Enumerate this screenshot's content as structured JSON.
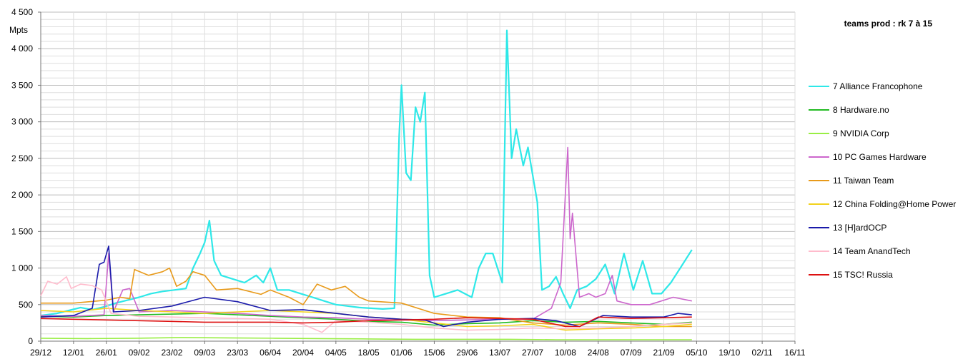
{
  "chart_data": {
    "type": "line",
    "title": "teams prod : rk 7 à 15",
    "ylabel": "Mpts",
    "xlabel": "",
    "ylim": [
      0,
      4500
    ],
    "yticks": [
      0,
      500,
      1000,
      1500,
      2000,
      2500,
      3000,
      3500,
      4000,
      4500
    ],
    "ytick_labels": [
      "0",
      "500",
      "1 000",
      "1 500",
      "2 000",
      "2 500",
      "3 000",
      "3 500",
      "4 000",
      "4 500"
    ],
    "x_tick_labels": [
      "29/12",
      "12/01",
      "26/01",
      "09/02",
      "23/02",
      "09/03",
      "23/03",
      "06/04",
      "20/04",
      "04/05",
      "18/05",
      "01/06",
      "15/06",
      "29/06",
      "13/07",
      "27/07",
      "10/08",
      "24/08",
      "07/09",
      "21/09",
      "05/10",
      "19/10",
      "02/11",
      "16/11"
    ],
    "grid": true,
    "legend_position": "right",
    "series": [
      {
        "name": "7 Alliance Francophone",
        "color": "#2ee8e8",
        "points": [
          [
            0,
            350
          ],
          [
            7,
            380
          ],
          [
            12,
            420
          ],
          [
            17,
            460
          ],
          [
            22,
            430
          ],
          [
            27,
            470
          ],
          [
            32,
            520
          ],
          [
            37,
            560
          ],
          [
            42,
            600
          ],
          [
            47,
            650
          ],
          [
            52,
            680
          ],
          [
            57,
            700
          ],
          [
            62,
            720
          ],
          [
            65,
            1000
          ],
          [
            68,
            1200
          ],
          [
            70,
            1350
          ],
          [
            72,
            1650
          ],
          [
            74,
            1100
          ],
          [
            77,
            900
          ],
          [
            82,
            850
          ],
          [
            87,
            800
          ],
          [
            92,
            900
          ],
          [
            95,
            800
          ],
          [
            98,
            1000
          ],
          [
            101,
            700
          ],
          [
            106,
            700
          ],
          [
            111,
            650
          ],
          [
            116,
            600
          ],
          [
            121,
            550
          ],
          [
            126,
            500
          ],
          [
            131,
            480
          ],
          [
            136,
            460
          ],
          [
            141,
            450
          ],
          [
            146,
            440
          ],
          [
            151,
            450
          ],
          [
            153,
            2800
          ],
          [
            154,
            3500
          ],
          [
            156,
            2300
          ],
          [
            158,
            2200
          ],
          [
            160,
            3200
          ],
          [
            162,
            3000
          ],
          [
            164,
            3400
          ],
          [
            166,
            900
          ],
          [
            168,
            600
          ],
          [
            173,
            650
          ],
          [
            178,
            700
          ],
          [
            181,
            650
          ],
          [
            184,
            600
          ],
          [
            187,
            1000
          ],
          [
            190,
            1200
          ],
          [
            193,
            1200
          ],
          [
            197,
            800
          ],
          [
            199,
            4250
          ],
          [
            201,
            2500
          ],
          [
            203,
            2900
          ],
          [
            206,
            2400
          ],
          [
            208,
            2650
          ],
          [
            212,
            1900
          ],
          [
            214,
            700
          ],
          [
            217,
            750
          ],
          [
            220,
            880
          ],
          [
            223,
            650
          ],
          [
            226,
            450
          ],
          [
            229,
            700
          ],
          [
            233,
            750
          ],
          [
            237,
            850
          ],
          [
            241,
            1050
          ],
          [
            245,
            650
          ],
          [
            249,
            1200
          ],
          [
            253,
            700
          ],
          [
            257,
            1100
          ],
          [
            261,
            650
          ],
          [
            265,
            650
          ],
          [
            269,
            800
          ],
          [
            273,
            1000
          ],
          [
            276,
            1150
          ],
          [
            278,
            1250
          ]
        ]
      },
      {
        "name": "8 Hardware.no",
        "color": "#22bb22",
        "points": [
          [
            0,
            340
          ],
          [
            14,
            330
          ],
          [
            28,
            350
          ],
          [
            42,
            360
          ],
          [
            56,
            370
          ],
          [
            70,
            380
          ],
          [
            84,
            360
          ],
          [
            98,
            340
          ],
          [
            112,
            320
          ],
          [
            126,
            300
          ],
          [
            140,
            270
          ],
          [
            154,
            260
          ],
          [
            168,
            220
          ],
          [
            182,
            240
          ],
          [
            196,
            250
          ],
          [
            210,
            280
          ],
          [
            224,
            260
          ],
          [
            238,
            270
          ],
          [
            252,
            250
          ],
          [
            266,
            230
          ],
          [
            278,
            260
          ]
        ]
      },
      {
        "name": "9 NVIDIA Corp",
        "color": "#99ee44",
        "points": [
          [
            0,
            40
          ],
          [
            20,
            35
          ],
          [
            40,
            40
          ],
          [
            60,
            50
          ],
          [
            80,
            45
          ],
          [
            100,
            40
          ],
          [
            120,
            35
          ],
          [
            140,
            30
          ],
          [
            160,
            25
          ],
          [
            180,
            25
          ],
          [
            200,
            25
          ],
          [
            220,
            20
          ],
          [
            240,
            20
          ],
          [
            260,
            20
          ],
          [
            278,
            20
          ]
        ]
      },
      {
        "name": "10 PC Games Hardware",
        "color": "#cc66cc",
        "points": [
          [
            0,
            350
          ],
          [
            14,
            340
          ],
          [
            27,
            360
          ],
          [
            29,
            1200
          ],
          [
            31,
            400
          ],
          [
            35,
            700
          ],
          [
            38,
            720
          ],
          [
            42,
            400
          ],
          [
            56,
            420
          ],
          [
            70,
            400
          ],
          [
            84,
            380
          ],
          [
            98,
            350
          ],
          [
            112,
            330
          ],
          [
            126,
            320
          ],
          [
            140,
            300
          ],
          [
            154,
            290
          ],
          [
            168,
            280
          ],
          [
            182,
            290
          ],
          [
            196,
            300
          ],
          [
            210,
            300
          ],
          [
            218,
            450
          ],
          [
            222,
            800
          ],
          [
            225,
            2650
          ],
          [
            226,
            1400
          ],
          [
            227,
            1750
          ],
          [
            230,
            600
          ],
          [
            234,
            650
          ],
          [
            237,
            600
          ],
          [
            241,
            650
          ],
          [
            244,
            900
          ],
          [
            246,
            550
          ],
          [
            252,
            500
          ],
          [
            260,
            500
          ],
          [
            270,
            600
          ],
          [
            278,
            550
          ]
        ]
      },
      {
        "name": "11 Taiwan Team",
        "color": "#e89a1a",
        "points": [
          [
            0,
            520
          ],
          [
            14,
            520
          ],
          [
            28,
            560
          ],
          [
            34,
            600
          ],
          [
            38,
            580
          ],
          [
            40,
            980
          ],
          [
            46,
            900
          ],
          [
            52,
            950
          ],
          [
            55,
            1000
          ],
          [
            58,
            750
          ],
          [
            62,
            820
          ],
          [
            65,
            950
          ],
          [
            70,
            900
          ],
          [
            75,
            700
          ],
          [
            84,
            720
          ],
          [
            94,
            640
          ],
          [
            98,
            700
          ],
          [
            106,
            600
          ],
          [
            112,
            500
          ],
          [
            118,
            780
          ],
          [
            124,
            700
          ],
          [
            130,
            750
          ],
          [
            136,
            600
          ],
          [
            140,
            550
          ],
          [
            154,
            520
          ],
          [
            168,
            380
          ],
          [
            182,
            330
          ],
          [
            196,
            320
          ],
          [
            210,
            250
          ],
          [
            224,
            220
          ],
          [
            238,
            250
          ],
          [
            252,
            230
          ],
          [
            266,
            200
          ],
          [
            278,
            200
          ]
        ]
      },
      {
        "name": "12 China Folding@Home Power",
        "color": "#f2d21c",
        "points": [
          [
            0,
            420
          ],
          [
            14,
            400
          ],
          [
            28,
            450
          ],
          [
            42,
            420
          ],
          [
            56,
            400
          ],
          [
            70,
            380
          ],
          [
            84,
            400
          ],
          [
            98,
            420
          ],
          [
            112,
            400
          ],
          [
            126,
            380
          ],
          [
            140,
            330
          ],
          [
            154,
            300
          ],
          [
            168,
            250
          ],
          [
            182,
            200
          ],
          [
            196,
            210
          ],
          [
            210,
            230
          ],
          [
            224,
            150
          ],
          [
            238,
            170
          ],
          [
            252,
            180
          ],
          [
            266,
            200
          ],
          [
            278,
            230
          ]
        ]
      },
      {
        "name": "13 [H]ardOCP",
        "color": "#1a1aaa",
        "points": [
          [
            0,
            330
          ],
          [
            14,
            350
          ],
          [
            22,
            450
          ],
          [
            25,
            1050
          ],
          [
            27,
            1080
          ],
          [
            29,
            1300
          ],
          [
            31,
            400
          ],
          [
            42,
            420
          ],
          [
            56,
            480
          ],
          [
            70,
            600
          ],
          [
            84,
            540
          ],
          [
            98,
            420
          ],
          [
            112,
            430
          ],
          [
            126,
            380
          ],
          [
            140,
            330
          ],
          [
            154,
            300
          ],
          [
            164,
            290
          ],
          [
            172,
            200
          ],
          [
            182,
            260
          ],
          [
            196,
            300
          ],
          [
            210,
            310
          ],
          [
            220,
            280
          ],
          [
            230,
            200
          ],
          [
            240,
            350
          ],
          [
            252,
            330
          ],
          [
            266,
            330
          ],
          [
            272,
            380
          ],
          [
            278,
            360
          ]
        ]
      },
      {
        "name": "14 Team AnandTech",
        "color": "#ffbbcc",
        "points": [
          [
            0,
            620
          ],
          [
            3,
            820
          ],
          [
            7,
            780
          ],
          [
            11,
            880
          ],
          [
            13,
            720
          ],
          [
            17,
            780
          ],
          [
            22,
            760
          ],
          [
            26,
            700
          ],
          [
            30,
            380
          ],
          [
            42,
            340
          ],
          [
            56,
            330
          ],
          [
            70,
            320
          ],
          [
            84,
            310
          ],
          [
            98,
            300
          ],
          [
            112,
            230
          ],
          [
            120,
            120
          ],
          [
            126,
            280
          ],
          [
            140,
            260
          ],
          [
            154,
            230
          ],
          [
            168,
            180
          ],
          [
            182,
            150
          ],
          [
            196,
            160
          ],
          [
            210,
            180
          ],
          [
            224,
            170
          ],
          [
            238,
            180
          ],
          [
            252,
            200
          ],
          [
            266,
            230
          ],
          [
            278,
            250
          ]
        ]
      },
      {
        "name": "15 TSC! Russia",
        "color": "#dd1111",
        "points": [
          [
            0,
            310
          ],
          [
            14,
            300
          ],
          [
            28,
            290
          ],
          [
            42,
            280
          ],
          [
            56,
            270
          ],
          [
            70,
            260
          ],
          [
            84,
            260
          ],
          [
            98,
            260
          ],
          [
            112,
            250
          ],
          [
            126,
            260
          ],
          [
            140,
            280
          ],
          [
            154,
            290
          ],
          [
            168,
            300
          ],
          [
            182,
            320
          ],
          [
            196,
            310
          ],
          [
            210,
            300
          ],
          [
            224,
            200
          ],
          [
            230,
            200
          ],
          [
            238,
            330
          ],
          [
            252,
            310
          ],
          [
            266,
            320
          ],
          [
            278,
            330
          ]
        ]
      }
    ]
  }
}
